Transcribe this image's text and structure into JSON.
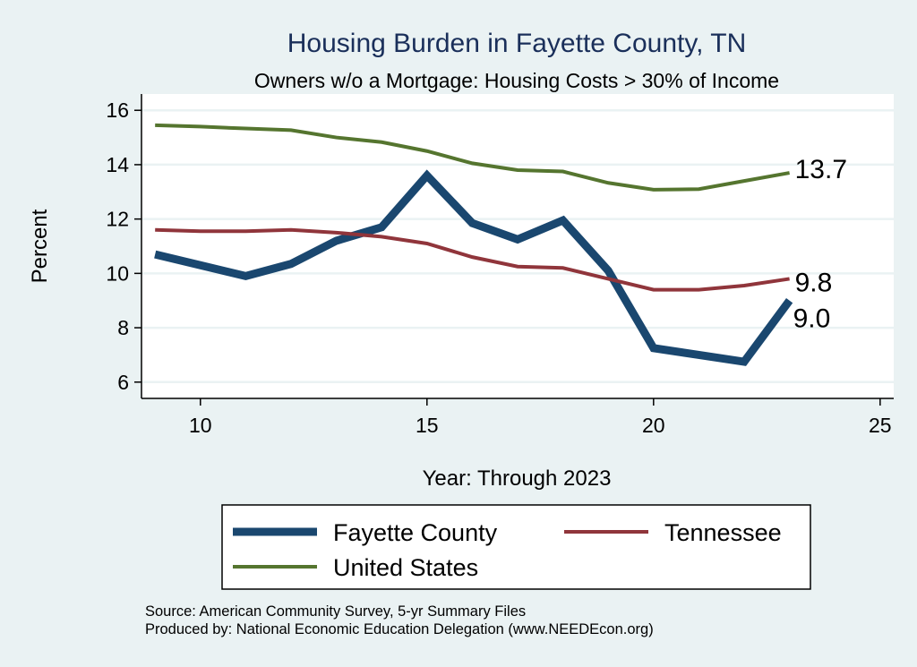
{
  "chart_data": {
    "type": "line",
    "title": "Housing Burden in Fayette County, TN",
    "subtitle": "Owners w/o a Mortgage: Housing Costs > 30% of Income",
    "xlabel": "Year: Through 2023",
    "ylabel": "Percent",
    "xlim": [
      8.7,
      25.3
    ],
    "ylim": [
      5.4,
      16.6
    ],
    "xticks": [
      10,
      15,
      20,
      25
    ],
    "yticks": [
      6,
      8,
      10,
      12,
      14,
      16
    ],
    "grid": true,
    "legend_position": "bottom",
    "x": [
      9,
      10,
      11,
      12,
      13,
      14,
      15,
      16,
      17,
      18,
      19,
      20,
      21,
      22,
      23
    ],
    "series": [
      {
        "name": "Fayette County",
        "color": "#1a476f",
        "width": 9,
        "values": [
          10.7,
          10.3,
          9.9,
          10.35,
          11.2,
          11.7,
          13.6,
          11.85,
          11.25,
          11.95,
          10.1,
          7.25,
          7.0,
          6.75,
          9.0
        ],
        "end_label": "9.0"
      },
      {
        "name": "Tennessee",
        "color": "#90353b",
        "width": 4,
        "values": [
          11.6,
          11.55,
          11.55,
          11.6,
          11.5,
          11.35,
          11.1,
          10.6,
          10.25,
          10.2,
          9.8,
          9.4,
          9.4,
          9.55,
          9.8
        ],
        "end_label": "9.8"
      },
      {
        "name": "United States",
        "color": "#55752f",
        "width": 4,
        "values": [
          15.45,
          15.4,
          15.33,
          15.27,
          15.0,
          14.83,
          14.5,
          14.05,
          13.8,
          13.75,
          13.33,
          13.08,
          13.1,
          13.4,
          13.7
        ],
        "end_label": "13.7"
      }
    ],
    "notes": [
      "Source: American Community Survey, 5-yr Summary Files",
      "Produced by: National Economic Education Delegation (www.NEEDEcon.org)"
    ]
  }
}
